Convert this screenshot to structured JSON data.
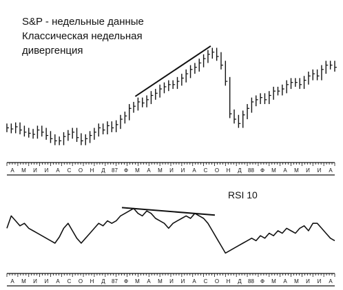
{
  "chart_data": [
    {
      "type": "ohlc",
      "title": "S&P - недельные данные",
      "subtitle": [
        "Классическая недельная",
        "дивергенция"
      ],
      "month_ticks": [
        "А",
        "М",
        "И",
        "И",
        "А",
        "С",
        "О",
        "Н",
        "Д",
        "87",
        "Ф",
        "М",
        "А",
        "М",
        "И",
        "И",
        "А",
        "С",
        "О",
        "Н",
        "Д",
        "88",
        "Ф",
        "М",
        "А",
        "М",
        "И",
        "И",
        "А"
      ],
      "close": [
        172,
        171,
        173,
        170,
        168,
        167,
        166,
        170,
        168,
        165,
        162,
        160,
        160,
        164,
        166,
        168,
        163,
        160,
        162,
        165,
        168,
        172,
        170,
        174,
        172,
        175,
        180,
        183,
        190,
        192,
        196,
        195,
        198,
        202,
        204,
        208,
        210,
        212,
        212,
        215,
        218,
        222,
        226,
        228,
        232,
        236,
        240,
        242,
        238,
        230,
        215,
        185,
        180,
        176,
        184,
        190,
        196,
        198,
        200,
        198,
        202,
        206,
        206,
        208,
        212,
        214,
        214,
        212,
        216,
        220,
        222,
        220,
        226,
        230,
        230,
        228
      ],
      "trendline": {
        "from_index": 30,
        "to_index": 46,
        "description": "upper divergence line"
      }
    },
    {
      "type": "line",
      "title": "RSI 10",
      "month_ticks": [
        "А",
        "М",
        "И",
        "И",
        "А",
        "С",
        "О",
        "Н",
        "Д",
        "87",
        "Ф",
        "М",
        "А",
        "М",
        "И",
        "И",
        "А",
        "С",
        "О",
        "Н",
        "Д",
        "88",
        "Ф",
        "М",
        "А",
        "М",
        "И",
        "И",
        "А"
      ],
      "values": [
        52,
        62,
        58,
        54,
        56,
        52,
        50,
        48,
        46,
        44,
        42,
        40,
        45,
        52,
        56,
        50,
        44,
        40,
        44,
        48,
        52,
        56,
        54,
        58,
        56,
        58,
        62,
        64,
        66,
        68,
        64,
        62,
        66,
        64,
        60,
        58,
        56,
        52,
        56,
        58,
        60,
        62,
        60,
        64,
        62,
        60,
        56,
        50,
        44,
        38,
        32,
        34,
        36,
        38,
        40,
        42,
        44,
        42,
        46,
        44,
        48,
        46,
        50,
        48,
        52,
        50,
        48,
        52,
        54,
        50,
        56,
        56,
        52,
        48,
        44,
        42
      ],
      "trendline": {
        "from_index": 26,
        "to_index": 46,
        "description": "falling RSI divergence line"
      }
    }
  ],
  "header": {
    "title_line1": "S&P - недельные данные",
    "title_line2": "Классическая недельная",
    "title_line3": "дивергенция",
    "rsi_label": "RSI 10"
  }
}
